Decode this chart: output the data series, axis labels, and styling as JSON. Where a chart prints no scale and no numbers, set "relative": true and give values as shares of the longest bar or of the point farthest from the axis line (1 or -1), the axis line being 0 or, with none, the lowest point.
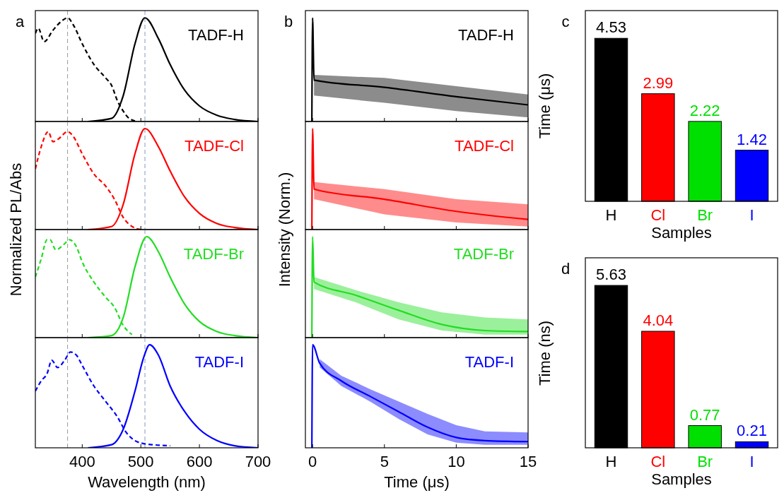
{
  "chart_data": [
    {
      "type": "line",
      "title": "a",
      "relative": true,
      "xlim": [
        320,
        700
      ],
      "xticks": [
        400,
        500,
        600,
        700
      ],
      "tick_labels": false,
      "annotations": [
        "TADF-H"
      ],
      "ref_lines": [
        {
          "axis": "x",
          "value": 375,
          "color": "#999999",
          "line_style": "dashed"
        },
        {
          "axis": "x",
          "value": 507,
          "color": "#8899bb",
          "line_style": "dashed"
        }
      ],
      "series": [
        {
          "color": "#000000",
          "x": [
            410,
            450,
            470,
            490,
            507,
            530,
            550,
            575,
            600,
            630,
            660,
            700
          ],
          "values": [
            0,
            0.03,
            0.25,
            0.75,
            1,
            0.8,
            0.55,
            0.3,
            0.15,
            0.06,
            0.02,
            0
          ]
        },
        {
          "color": "#000000",
          "line_style": "dashed",
          "x": [
            320,
            325,
            335,
            350,
            365,
            375,
            385,
            400,
            420,
            440,
            450,
            460,
            470,
            480,
            495
          ],
          "values": [
            0.85,
            0.9,
            0.77,
            0.88,
            0.97,
            1,
            0.93,
            0.75,
            0.55,
            0.42,
            0.35,
            0.2,
            0.1,
            0.03,
            0
          ]
        }
      ]
    },
    {
      "type": "line",
      "relative": true,
      "xlim": [
        320,
        700
      ],
      "xticks": [
        400,
        500,
        600,
        700
      ],
      "tick_labels": false,
      "annotations": [
        "TADF-Cl"
      ],
      "ylabel": "Normalized PL/Abs",
      "ref_lines": [
        {
          "axis": "x",
          "value": 375,
          "color": "#999999",
          "line_style": "dashed"
        },
        {
          "axis": "x",
          "value": 507,
          "color": "#8899bb",
          "line_style": "dashed"
        }
      ],
      "series": [
        {
          "color": "#ff0000",
          "x": [
            410,
            450,
            470,
            490,
            507,
            530,
            550,
            575,
            600,
            630,
            660,
            700
          ],
          "values": [
            0,
            0.03,
            0.25,
            0.75,
            1,
            0.82,
            0.58,
            0.32,
            0.16,
            0.06,
            0.02,
            0
          ]
        },
        {
          "color": "#ff0000",
          "line_style": "dashed",
          "x": [
            320,
            330,
            342,
            350,
            360,
            375,
            385,
            400,
            420,
            440,
            455,
            470,
            485,
            500
          ],
          "values": [
            0.6,
            0.82,
            0.97,
            0.87,
            0.9,
            0.97,
            0.92,
            0.75,
            0.55,
            0.43,
            0.3,
            0.12,
            0.03,
            0
          ]
        }
      ]
    },
    {
      "type": "line",
      "relative": true,
      "xlim": [
        320,
        700
      ],
      "xticks": [
        400,
        500,
        600,
        700
      ],
      "tick_labels": false,
      "annotations": [
        "TADF-Br"
      ],
      "ref_lines": [
        {
          "axis": "x",
          "value": 375,
          "color": "#999999",
          "line_style": "dashed"
        },
        {
          "axis": "x",
          "value": 507,
          "color": "#8899bb",
          "line_style": "dashed"
        }
      ],
      "series": [
        {
          "color": "#22dd22",
          "x": [
            410,
            450,
            470,
            490,
            510,
            530,
            550,
            575,
            600,
            630,
            660,
            700
          ],
          "values": [
            0,
            0.02,
            0.2,
            0.7,
            1,
            0.85,
            0.6,
            0.33,
            0.16,
            0.06,
            0.02,
            0
          ]
        },
        {
          "color": "#22dd22",
          "line_style": "dashed",
          "x": [
            320,
            330,
            340,
            345,
            355,
            370,
            378,
            390,
            400,
            420,
            440,
            455,
            470,
            485
          ],
          "values": [
            0.6,
            0.78,
            0.97,
            0.97,
            0.87,
            0.93,
            0.97,
            0.9,
            0.75,
            0.55,
            0.4,
            0.3,
            0.12,
            0.03
          ]
        }
      ]
    },
    {
      "type": "line",
      "relative": true,
      "xlim": [
        320,
        700
      ],
      "xticks": [
        400,
        500,
        600,
        700
      ],
      "tick_labels": "x",
      "annotations": [
        "TADF-I"
      ],
      "xlabel": "Wavelength (nm)",
      "ref_lines": [
        {
          "axis": "x",
          "value": 375,
          "color": "#999999",
          "line_style": "dashed"
        },
        {
          "axis": "x",
          "value": 507,
          "color": "#8899bb",
          "line_style": "dashed"
        }
      ],
      "series": [
        {
          "color": "#0000ff",
          "x": [
            410,
            450,
            470,
            490,
            505,
            515,
            530,
            550,
            575,
            600,
            630,
            660,
            700
          ],
          "values": [
            0,
            0.03,
            0.18,
            0.55,
            0.88,
            1,
            0.9,
            0.6,
            0.35,
            0.18,
            0.07,
            0.02,
            0
          ]
        },
        {
          "color": "#0000ff",
          "line_style": "dashed",
          "x": [
            320,
            330,
            340,
            348,
            358,
            370,
            380,
            390,
            400,
            420,
            440,
            460,
            475,
            490,
            505,
            520,
            550
          ],
          "values": [
            0.55,
            0.65,
            0.72,
            0.85,
            0.78,
            0.85,
            0.93,
            0.9,
            0.8,
            0.6,
            0.45,
            0.3,
            0.15,
            0.07,
            0.04,
            0.03,
            0.02
          ]
        }
      ]
    },
    {
      "type": "line",
      "title": "b",
      "relative": true,
      "xlim": [
        -0.5,
        15
      ],
      "xticks": [
        0,
        5,
        10,
        15
      ],
      "tick_labels": false,
      "annotations": [
        "TADF-H"
      ],
      "series": [
        {
          "color": "#000000",
          "x": [
            -0.05,
            0,
            0.1,
            5,
            10,
            15
          ],
          "values": [
            0,
            1,
            0.4,
            0.33,
            0.24,
            0.16
          ],
          "lower": [
            null,
            null,
            0.25,
            0.18,
            0.1,
            0.04
          ],
          "upper": [
            null,
            null,
            0.45,
            0.42,
            0.34,
            0.26
          ]
        }
      ]
    },
    {
      "type": "line",
      "relative": true,
      "xlim": [
        -0.5,
        15
      ],
      "xticks": [
        0,
        5,
        10,
        15
      ],
      "tick_labels": false,
      "annotations": [
        "TADF-Cl"
      ],
      "ylabel": "Intensity (Norm.)",
      "series": [
        {
          "color": "#ff0000",
          "x": [
            -0.05,
            0,
            0.1,
            5,
            10,
            15
          ],
          "values": [
            0,
            1,
            0.4,
            0.3,
            0.18,
            0.1
          ],
          "lower": [
            null,
            null,
            0.3,
            0.15,
            0.07,
            0.03
          ],
          "upper": [
            null,
            null,
            0.47,
            0.4,
            0.3,
            0.25
          ]
        }
      ]
    },
    {
      "type": "line",
      "relative": true,
      "xlim": [
        -0.5,
        15
      ],
      "xticks": [
        0,
        5,
        10,
        15
      ],
      "tick_labels": false,
      "annotations": [
        "TADF-Br"
      ],
      "series": [
        {
          "color": "#22dd22",
          "x": [
            -0.05,
            0,
            0.1,
            3,
            6,
            9,
            12,
            15
          ],
          "values": [
            0,
            1,
            0.55,
            0.42,
            0.27,
            0.13,
            0.07,
            0.06
          ],
          "lower": [
            null,
            null,
            0.48,
            0.35,
            0.18,
            0.07,
            0.03,
            0.03
          ],
          "upper": [
            null,
            null,
            0.6,
            0.47,
            0.35,
            0.25,
            0.2,
            0.18
          ]
        }
      ]
    },
    {
      "type": "line",
      "relative": true,
      "xlim": [
        -0.5,
        15
      ],
      "xticks": [
        0,
        5,
        10,
        15
      ],
      "tick_labels": "x",
      "annotations": [
        "TADF-I"
      ],
      "xlabel": "Time (μs)",
      "series": [
        {
          "color": "#0000ff",
          "x": [
            -0.05,
            0,
            0.5,
            2,
            4,
            6,
            8,
            10,
            12,
            15
          ],
          "values": [
            0,
            1,
            0.82,
            0.65,
            0.5,
            0.35,
            0.2,
            0.1,
            0.07,
            0.06
          ],
          "lower": [
            null,
            null,
            0.78,
            0.6,
            0.45,
            0.28,
            0.13,
            0.05,
            0.03,
            0.03
          ],
          "upper": [
            null,
            null,
            0.86,
            0.7,
            0.57,
            0.45,
            0.33,
            0.22,
            0.16,
            0.15
          ]
        }
      ]
    },
    {
      "type": "bar",
      "title": "c",
      "categories": [
        "H",
        "Cl",
        "Br",
        "I"
      ],
      "values": [
        4.53,
        2.99,
        2.22,
        1.42
      ],
      "colors": [
        "#000000",
        "#ff0000",
        "#00e000",
        "#0000ff"
      ],
      "data_labels": true,
      "ylabel": "Time (μs)",
      "xlabel": "Samples"
    },
    {
      "type": "bar",
      "title": "d",
      "categories": [
        "H",
        "Cl",
        "Br",
        "I"
      ],
      "values": [
        5.63,
        4.04,
        0.77,
        0.21
      ],
      "colors": [
        "#000000",
        "#ff0000",
        "#00e000",
        "#0000ff"
      ],
      "data_labels": true,
      "ylabel": "Time (ns)",
      "xlabel": "Samples"
    }
  ]
}
